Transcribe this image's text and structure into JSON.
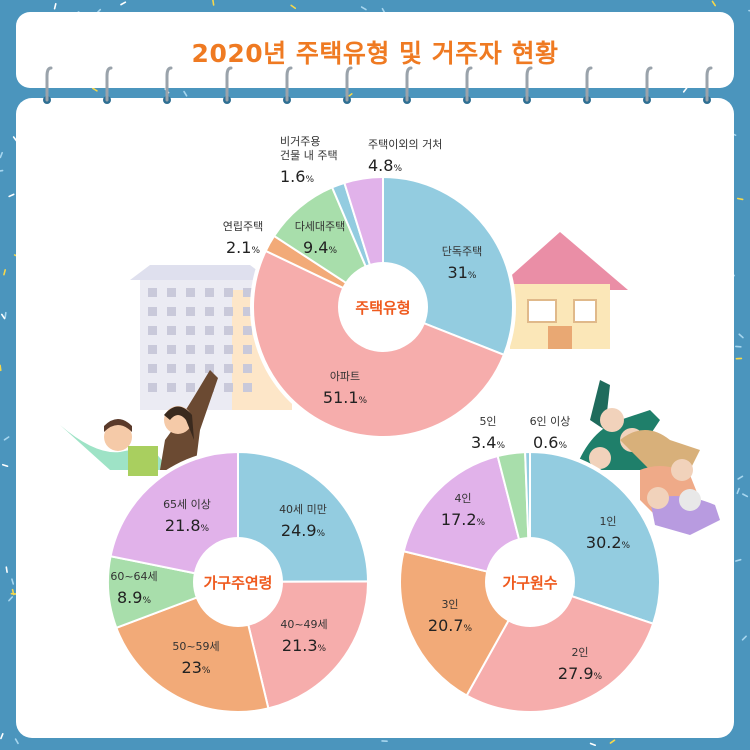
{
  "title": "2020년 주택유형 및 거주자 현황",
  "colors": {
    "background": "#4b95bd",
    "title": "#ef7a22",
    "center_label": "#ef5a1e",
    "blue": "#93cce0",
    "pink": "#f6adac",
    "orange": "#f2aa78",
    "green": "#a8deab",
    "purple": "#e1b2ea"
  },
  "chart_data": [
    {
      "type": "pie",
      "center_label": "주택유형",
      "slices": [
        {
          "label": "단독주택",
          "value": 31,
          "display": "31",
          "color": "#93cce0"
        },
        {
          "label": "아파트",
          "value": 51.1,
          "display": "51.1",
          "color": "#f6adac"
        },
        {
          "label": "연립주택",
          "value": 2.1,
          "display": "2.1",
          "color": "#f2aa78"
        },
        {
          "label": "다세대주택",
          "value": 9.4,
          "display": "9.4",
          "color": "#a8deab"
        },
        {
          "label": "비거주용 건물 내 주택",
          "value": 1.6,
          "display": "1.6",
          "color": "#93cce0"
        },
        {
          "label": "주택이외의 거처",
          "value": 4.8,
          "display": "4.8",
          "color": "#e1b2ea"
        }
      ],
      "unit": "%"
    },
    {
      "type": "pie",
      "center_label": "가구주연령",
      "slices": [
        {
          "label": "40세 미만",
          "value": 24.9,
          "display": "24.9",
          "color": "#93cce0"
        },
        {
          "label": "40~49세",
          "value": 21.3,
          "display": "21.3",
          "color": "#f6adac"
        },
        {
          "label": "50~59세",
          "value": 23,
          "display": "23",
          "color": "#f2aa78"
        },
        {
          "label": "60~64세",
          "value": 8.9,
          "display": "8.9",
          "color": "#a8deab"
        },
        {
          "label": "65세 이상",
          "value": 21.8,
          "display": "21.8",
          "color": "#e1b2ea"
        }
      ],
      "unit": "%"
    },
    {
      "type": "pie",
      "center_label": "가구원수",
      "slices": [
        {
          "label": "1인",
          "value": 30.2,
          "display": "30.2",
          "color": "#93cce0"
        },
        {
          "label": "2인",
          "value": 27.9,
          "display": "27.9",
          "color": "#f6adac"
        },
        {
          "label": "3인",
          "value": 20.7,
          "display": "20.7",
          "color": "#f2aa78"
        },
        {
          "label": "4인",
          "value": 17.2,
          "display": "17.2",
          "color": "#e1b2ea"
        },
        {
          "label": "5인",
          "value": 3.4,
          "display": "3.4",
          "color": "#a8deab"
        },
        {
          "label": "6인 이상",
          "value": 0.6,
          "display": "0.6",
          "color": "#93cce0"
        }
      ],
      "unit": "%"
    }
  ]
}
